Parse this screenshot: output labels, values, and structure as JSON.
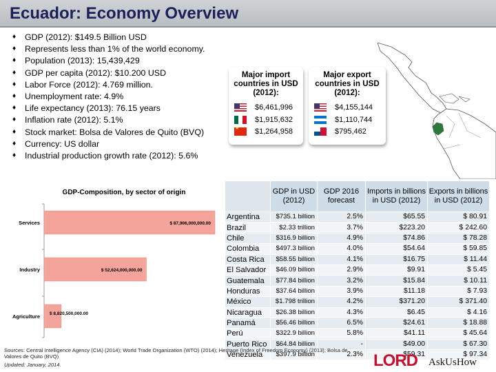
{
  "title": "Ecuador: Economy Overview",
  "bullets": [
    "GDP (2012): $149.5 Billion USD",
    "Represents less than 1% of the world economy.",
    "Population (2013): 15,439,429",
    "GDP per capita (2012): $10.200 USD",
    "Labor Force (2012): 4.769 million.",
    "Unemployment rate: 4.9%",
    "Life expectancy (2013): 76.15 years",
    "Inflation rate (2012): 5.1%",
    "Stock market: Bolsa de Valores de Quito (BVQ)",
    "Currency: US dollar",
    "Industrial production growth rate (2012): 5.6%"
  ],
  "bullet_icon": "diamond-bullet-icon",
  "imports": {
    "heading": "Major import countries in USD (2012):",
    "rows": [
      {
        "flag": "usa-flag-icon",
        "value": "$6,461,996"
      },
      {
        "flag": "mexico-flag-icon",
        "value": "$1,915,632"
      },
      {
        "flag": "china-flag-icon",
        "value": "$1,264,958"
      }
    ]
  },
  "exports": {
    "heading": "Major export countries in USD (2012):",
    "rows": [
      {
        "flag": "usa-flag-icon",
        "value": "$4,155,144"
      },
      {
        "flag": "honduras-flag-icon",
        "value": "$1,110,744"
      },
      {
        "flag": "panama-flag-icon",
        "value": "$795,462"
      }
    ]
  },
  "map_icon": "latin-america-map-icon",
  "chart_data": {
    "type": "bar",
    "orientation": "horizontal",
    "title": "GDP-Composition, by sector of origin",
    "categories": [
      "Services",
      "Industry",
      "Agriculture"
    ],
    "values": [
      87906000000,
      52624000000,
      8820500000
    ],
    "data_labels": [
      "$ 87,906,000,000.00",
      "$ 52,624,000,000.00",
      "$ 8,820,500,000.00"
    ],
    "xlim": [
      0,
      87906000000
    ],
    "color": "#f4a49a",
    "grid": false
  },
  "table": {
    "corner": "",
    "headers": [
      "GDP in USD (2012)",
      "GDP 2016 forecast",
      "Imports in billions in USD (2012)",
      "Exports in billions in USD (2012)"
    ],
    "rows": [
      {
        "country": "Argentina",
        "gdp": "$735.1 billion",
        "forecast": "2.5%",
        "imports": "$65.55",
        "exports": "$ 80.91"
      },
      {
        "country": "Brazil",
        "gdp": "$2.33 trillion",
        "forecast": "3.7%",
        "imports": "$223.20",
        "exports": "$ 242.60"
      },
      {
        "country": "Chile",
        "gdp": "$316.9 billion",
        "forecast": "4.9%",
        "imports": "$74.86",
        "exports": "$ 78.28"
      },
      {
        "country": "Colombia",
        "gdp": "$497.3 billion",
        "forecast": "4.0%",
        "imports": "$54.64",
        "exports": "$ 59.85"
      },
      {
        "country": "Costa Rica",
        "gdp": "$58.55 billion",
        "forecast": "4.1%",
        "imports": "$16.75",
        "exports": "$ 11.44"
      },
      {
        "country": "El Salvador",
        "gdp": "$46.09 billion",
        "forecast": "2.9%",
        "imports": "$9.91",
        "exports": "$ 5.45"
      },
      {
        "country": "Guatemala",
        "gdp": "$77.84 billion",
        "forecast": "3.2%",
        "imports": "$15.84",
        "exports": "$ 10.11"
      },
      {
        "country": "Honduras",
        "gdp": "$37.64 billion",
        "forecast": "3.9%",
        "imports": "$11.18",
        "exports": "$ 7.93"
      },
      {
        "country": "México",
        "gdp": "$1.798 trillion",
        "forecast": "4.2%",
        "imports": "$371.20",
        "exports": "$ 371.40"
      },
      {
        "country": "Nicaragua",
        "gdp": "$26.38 billion",
        "forecast": "4.3%",
        "imports": "$6.45",
        "exports": "$ 4.16"
      },
      {
        "country": "Panamá",
        "gdp": "$56.46 billion",
        "forecast": "6.5%",
        "imports": "$24.61",
        "exports": "$ 18.88"
      },
      {
        "country": "Perú",
        "gdp": "$322.9 billion",
        "forecast": "5.8%",
        "imports": "$41.11",
        "exports": "$ 45.64"
      },
      {
        "country": "Puerto Rico",
        "gdp": "$64.84 billion",
        "forecast": "-",
        "imports": "$49.00",
        "exports": "$ 67.30"
      },
      {
        "country": "Venezuela",
        "gdp": "$397.9 billion",
        "forecast": "2.3%",
        "imports": "$59.31",
        "exports": "$ 97.34"
      }
    ]
  },
  "sources": "Sources: Central Intelligence Agency (CIA) (2014); World Trade Organization (WTO) (2014); Heritage (Index of Freedom Economy) (2013); Bolsa de Valores de Quito (BVQ)",
  "updated": "Updated: January, 2014.",
  "logo": {
    "brand": "LORD",
    "tagline": "AskUsHow",
    "icon": "lord-logo-icon"
  }
}
